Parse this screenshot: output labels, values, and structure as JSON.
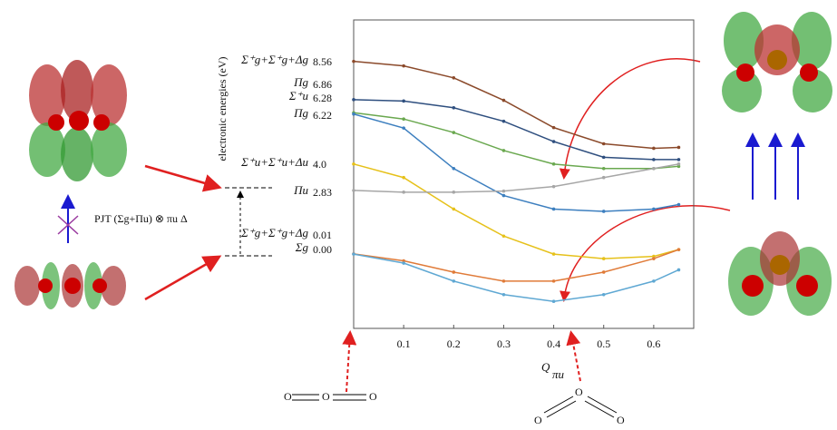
{
  "chart_data": {
    "type": "line",
    "y_label": "electronic energies (eV)",
    "x_label": "Q",
    "x_label_sub": "πu",
    "x": [
      0,
      0.1,
      0.2,
      0.3,
      0.4,
      0.5,
      0.6,
      0.65
    ],
    "xlim": [
      0,
      0.68
    ],
    "xticks": [
      0.1,
      0.2,
      0.3,
      0.4,
      0.5,
      0.6
    ],
    "ylim": [
      -3.3,
      10.4
    ],
    "series": [
      {
        "name": "Σ⁺g+Σ⁺g+Δg",
        "start_label": "8.56",
        "color": "#8b4a2b",
        "values": [
          8.56,
          8.36,
          7.83,
          6.83,
          5.62,
          4.9,
          4.7,
          4.74
        ]
      },
      {
        "name": "Πg",
        "start_label": "6.86",
        "color": "#2f4f7f",
        "values": [
          6.86,
          6.8,
          6.5,
          5.9,
          5.0,
          4.3,
          4.2,
          4.2
        ]
      },
      {
        "name": "Σ⁺u",
        "start_label": "6.28",
        "color": "#6aa84f",
        "values": [
          6.28,
          6.0,
          5.4,
          4.6,
          4.0,
          3.8,
          3.8,
          3.9
        ]
      },
      {
        "name": "Πg",
        "start_label": "6.22",
        "color": "#3d7fbf",
        "values": [
          6.22,
          5.6,
          3.8,
          2.6,
          2.0,
          1.9,
          2.0,
          2.2
        ]
      },
      {
        "name": "Σ⁺u+Σ⁺u+Δu",
        "start_label": "4.0",
        "color": "#e6c11a",
        "values": [
          4.0,
          3.4,
          2.0,
          0.8,
          0.0,
          -0.2,
          -0.1,
          0.2
        ]
      },
      {
        "name": "Πu",
        "start_label": "2.83",
        "color": "#a6a6a6",
        "values": [
          2.83,
          2.75,
          2.75,
          2.8,
          3.0,
          3.4,
          3.8,
          4.0
        ]
      },
      {
        "name": "Σ⁺g+Σ⁺g+Δg",
        "start_label": "0.01",
        "color": "#e07b39",
        "values": [
          0.01,
          -0.3,
          -0.8,
          -1.2,
          -1.2,
          -0.8,
          -0.2,
          0.2
        ]
      },
      {
        "name": "Σg",
        "start_label": "0.00",
        "color": "#5fa8d3",
        "values": [
          0,
          -0.4,
          -1.2,
          -1.8,
          -2.1,
          -1.8,
          -1.2,
          -0.7
        ]
      }
    ],
    "pjt_label": "PJT (Σg+Πu) ⊗ πu Δ",
    "linear_molecule": [
      "O",
      "O",
      "O"
    ],
    "bent_molecule": [
      "O",
      "O",
      "O"
    ]
  }
}
